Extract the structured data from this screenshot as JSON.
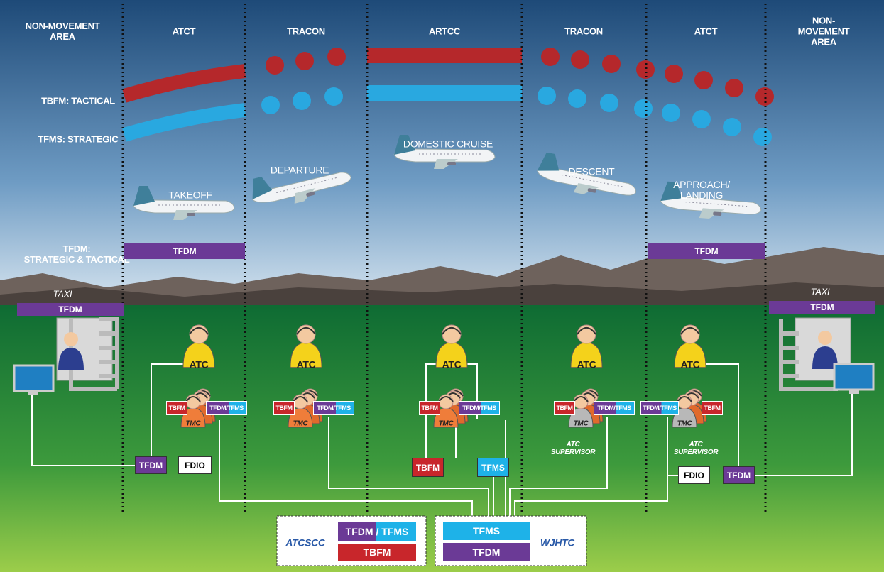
{
  "columns": [
    "NON-MOVEMENT\nAREA",
    "ATCT",
    "TRACON",
    "ARTCC",
    "TRACON",
    "ATCT",
    "NON-MOVEMENT\nAREA"
  ],
  "lanes": [
    "TBFM: TACTICAL",
    "TFMS: STRATEGIC",
    "TFDM:\nSTRATEGIC & TACTICAL"
  ],
  "phases": [
    "TAKEOFF",
    "DEPARTURE",
    "DOMESTIC CRUISE",
    "DESCENT",
    "APPROACH/\nLANDING"
  ],
  "tfdm_bars": [
    "TFDM",
    "TFDM"
  ],
  "taxi": [
    {
      "label": "TAXI",
      "system": "TFDM"
    },
    {
      "label": "TAXI",
      "system": "TFDM"
    }
  ],
  "controllers": [
    {
      "atc": "ATC",
      "tmc": "TMC",
      "tags": [
        "TBFM",
        "TFDM/TFMS"
      ]
    },
    {
      "atc": "ATC",
      "tmc": "TMC",
      "tags": [
        "TBFM",
        "TFDM/TFMS"
      ]
    },
    {
      "atc": "ATC",
      "tmc": "TMC",
      "tags": [
        "TBFM",
        "TFDM/TFMS"
      ]
    },
    {
      "atc": "ATC",
      "tmc": "TMC",
      "tags": [
        "TBFM",
        "TFDM/TFMS"
      ]
    },
    {
      "atc": "ATC",
      "tmc": "TMC",
      "tags": [
        "TFDM/TFMS",
        "TBFM"
      ]
    }
  ],
  "supervisors": [
    "ATC\nSUPERVISOR",
    "ATC\nSUPERVISOR"
  ],
  "ground_systems": [
    "TFDM",
    "FDIO",
    "TBFM",
    "TFMS",
    "FDIO",
    "TFDM"
  ],
  "centers": [
    {
      "name": "ATCSCC",
      "systems": [
        "TFDM / TFMS",
        "TBFM"
      ]
    },
    {
      "name": "WJHTC",
      "systems": [
        "TFMS",
        "TFDM"
      ]
    }
  ]
}
